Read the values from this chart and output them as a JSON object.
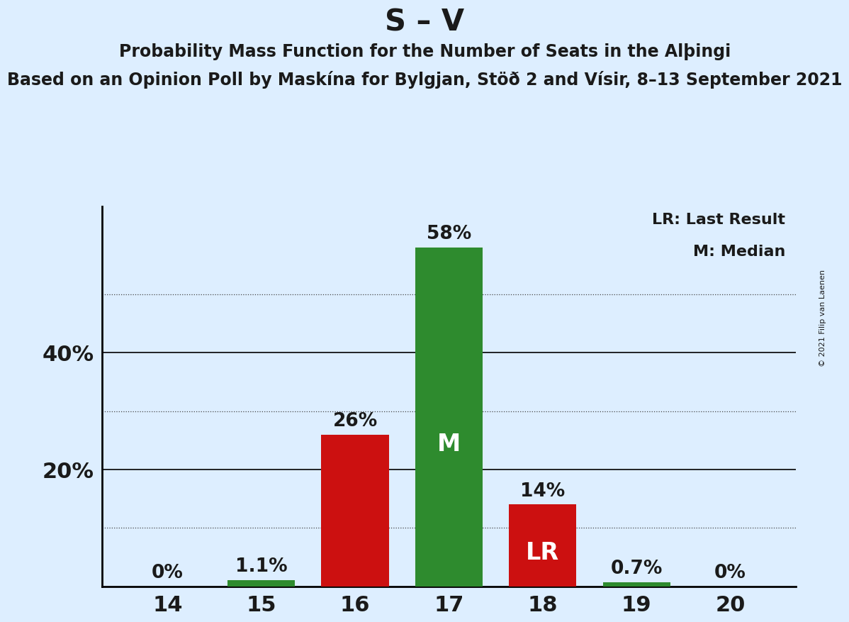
{
  "title": "S – V",
  "subtitle1": "Probability Mass Function for the Number of Seats in the Alþingi",
  "subtitle2": "Based on an Opinion Poll by Maskína for Bylgjan, Stöð 2 and Vísir, 8–13 September 2021",
  "copyright": "© 2021 Filip van Laenen",
  "legend_lr": "LR: Last Result",
  "legend_m": "M: Median",
  "seats": [
    14,
    15,
    16,
    17,
    18,
    19,
    20
  ],
  "values": [
    0.0,
    1.1,
    26.0,
    58.0,
    14.0,
    0.7,
    0.0
  ],
  "labels": [
    "0%",
    "1.1%",
    "26%",
    "58%",
    "14%",
    "0.7%",
    "0%"
  ],
  "bar_colors": [
    "#2e8b2e",
    "#2e8b2e",
    "#cc1010",
    "#2e8b2e",
    "#cc1010",
    "#2e8b2e",
    "#2e8b2e"
  ],
  "median_seat": 17,
  "last_result_seat": 18,
  "background_color": "#ddeeff",
  "solid_gridlines": [
    20,
    40
  ],
  "dotted_gridlines": [
    10,
    30,
    50
  ],
  "ylim": [
    0,
    65
  ],
  "title_fontsize": 30,
  "subtitle1_fontsize": 17,
  "subtitle2_fontsize": 17,
  "bar_label_fontsize": 19,
  "ylabel_fontsize": 22,
  "xlabel_fontsize": 22,
  "legend_fontsize": 16,
  "inner_label_fontsize": 24,
  "bar_width": 0.72,
  "xlim": [
    13.3,
    20.7
  ]
}
